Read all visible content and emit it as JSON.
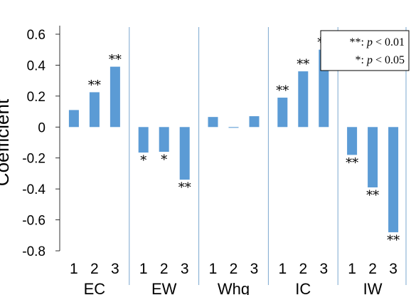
{
  "chart_data": {
    "type": "bar",
    "ylabel": "Coefficient",
    "ylim": [
      -0.8,
      0.6
    ],
    "yticks": [
      "-0.8",
      "-0.6",
      "-0.4",
      "-0.2",
      "0",
      "0.2",
      "0.4",
      "0.6"
    ],
    "ytick_values": [
      -0.8,
      -0.6,
      -0.4,
      -0.2,
      0,
      0.2,
      0.4,
      0.6
    ],
    "grid": false,
    "legend_position": "top-right",
    "bar_color": "#5B9BD5",
    "groups": [
      {
        "label": "EC",
        "categories": [
          "1",
          "2",
          "3"
        ],
        "values": [
          0.11,
          0.225,
          0.39
        ],
        "significance": [
          "",
          "**",
          "**"
        ]
      },
      {
        "label": "EW",
        "categories": [
          "1",
          "2",
          "3"
        ],
        "values": [
          -0.165,
          -0.16,
          -0.34
        ],
        "significance": [
          "*",
          "*",
          "**"
        ]
      },
      {
        "label": "Whg",
        "categories": [
          "1",
          "2",
          "3"
        ],
        "values": [
          0.065,
          -0.005,
          0.07
        ],
        "significance": [
          "",
          "",
          ""
        ]
      },
      {
        "label": "IC",
        "categories": [
          "1",
          "2",
          "3"
        ],
        "values": [
          0.19,
          0.36,
          0.5
        ],
        "significance": [
          "**",
          "**",
          "**"
        ]
      },
      {
        "label": "IW",
        "categories": [
          "1",
          "2",
          "3"
        ],
        "values": [
          -0.18,
          -0.39,
          -0.68
        ],
        "significance": [
          "**",
          "**",
          "**"
        ]
      }
    ],
    "legend": [
      {
        "symbol": "**:",
        "var": "p",
        "rel": " < 0.01"
      },
      {
        "symbol": "*:",
        "var": "p",
        "rel": " < 0.05"
      }
    ]
  }
}
